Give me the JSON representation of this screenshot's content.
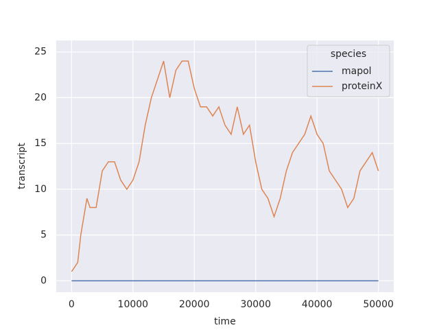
{
  "chart_data": {
    "type": "line",
    "xlabel": "time",
    "ylabel": "transcript",
    "x": [
      0,
      1000,
      1500,
      2000,
      2500,
      3000,
      4000,
      5000,
      6000,
      7000,
      8000,
      9000,
      10000,
      11000,
      12000,
      13000,
      14000,
      15000,
      16000,
      17000,
      18000,
      19000,
      20000,
      21000,
      22000,
      23000,
      24000,
      25000,
      26000,
      27000,
      28000,
      29000,
      30000,
      31000,
      32000,
      33000,
      34000,
      35000,
      36000,
      37000,
      38000,
      39000,
      40000,
      41000,
      42000,
      43000,
      44000,
      45000,
      46000,
      47000,
      48000,
      49000,
      50000
    ],
    "series": [
      {
        "name": "mapol",
        "color": "#4c72b0",
        "values": [
          0,
          0,
          0,
          0,
          0,
          0,
          0,
          0,
          0,
          0,
          0,
          0,
          0,
          0,
          0,
          0,
          0,
          0,
          0,
          0,
          0,
          0,
          0,
          0,
          0,
          0,
          0,
          0,
          0,
          0,
          0,
          0,
          0,
          0,
          0,
          0,
          0,
          0,
          0,
          0,
          0,
          0,
          0,
          0,
          0,
          0,
          0,
          0,
          0,
          0,
          0,
          0,
          0
        ]
      },
      {
        "name": "proteinX",
        "color": "#dd8452",
        "values": [
          1,
          2,
          5,
          7,
          9,
          8,
          8,
          12,
          13,
          13,
          11,
          10,
          11,
          13,
          17,
          20,
          22,
          24,
          20,
          23,
          24,
          24,
          21,
          19,
          19,
          18,
          19,
          17,
          16,
          19,
          16,
          17,
          13,
          10,
          9,
          7,
          9,
          12,
          14,
          15,
          16,
          18,
          16,
          15,
          12,
          11,
          10,
          8,
          9,
          12,
          13,
          14,
          12
        ]
      }
    ],
    "legend_title": "species",
    "legend": "upper right",
    "xlim": [
      -2500,
      52500
    ],
    "xticks": [
      0,
      10000,
      20000,
      30000,
      40000,
      50000
    ],
    "ylim": [
      -1.25,
      26.25
    ],
    "yticks": [
      0,
      5,
      10,
      15,
      20,
      25
    ],
    "grid": true
  }
}
